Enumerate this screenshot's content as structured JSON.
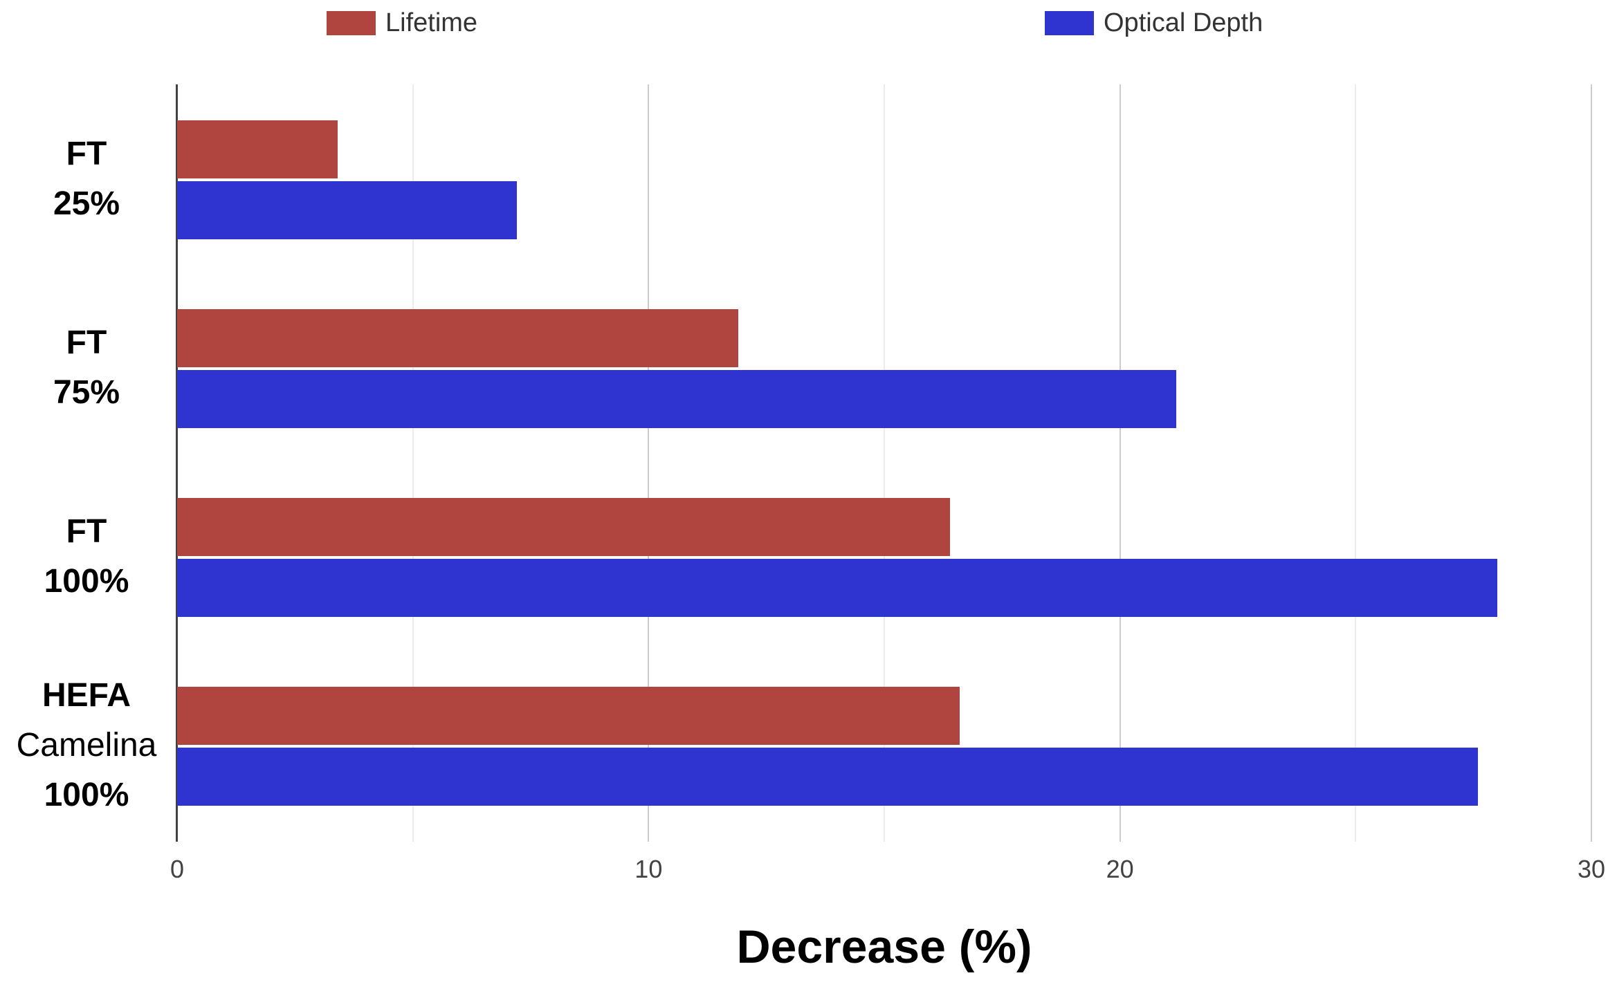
{
  "chart_data": {
    "type": "bar",
    "orientation": "horizontal",
    "title": "",
    "xlabel": "Decrease (%)",
    "ylabel": "",
    "legend_position": "top",
    "grid": true,
    "categories": [
      {
        "lines": [
          {
            "text": "FT",
            "bold": true
          },
          {
            "text": "25%",
            "bold": true
          }
        ]
      },
      {
        "lines": [
          {
            "text": "FT",
            "bold": true
          },
          {
            "text": "75%",
            "bold": true
          }
        ]
      },
      {
        "lines": [
          {
            "text": "FT",
            "bold": true
          },
          {
            "text": "100%",
            "bold": true
          }
        ]
      },
      {
        "lines": [
          {
            "text": "HEFA",
            "bold": true
          },
          {
            "text": "Camelina",
            "bold": false
          },
          {
            "text": "100%",
            "bold": true
          }
        ]
      }
    ],
    "series": [
      {
        "name": "Lifetime",
        "color": "#b04540",
        "values": [
          3.4,
          11.9,
          16.4,
          16.6
        ]
      },
      {
        "name": "Optical Depth",
        "color": "#2f34d0",
        "values": [
          7.2,
          21.2,
          28.0,
          27.6
        ]
      }
    ],
    "x_axis": {
      "min": 0,
      "max": 30,
      "tick_values": [
        0,
        10,
        20,
        30
      ],
      "tick_labels": [
        "0",
        "10",
        "20",
        "30"
      ],
      "minor_gridlines": [
        5,
        15,
        25
      ]
    }
  },
  "colors": {
    "background": "#ffffff",
    "axis_line": "#424242",
    "major_gridline": "#cccccc",
    "minor_gridline": "#ececec",
    "tick_label": "#424242",
    "legend_text": "#333333",
    "category_text": "#000000"
  }
}
